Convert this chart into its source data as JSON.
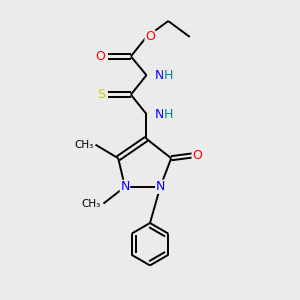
{
  "bg_color": "#ebebeb",
  "atom_colors": {
    "N": "#0000ff",
    "O": "#ff0000",
    "S": "#cccc00",
    "H": "#008b8b",
    "C": "#000000"
  },
  "bond_color": "#000000",
  "lw": 1.4
}
